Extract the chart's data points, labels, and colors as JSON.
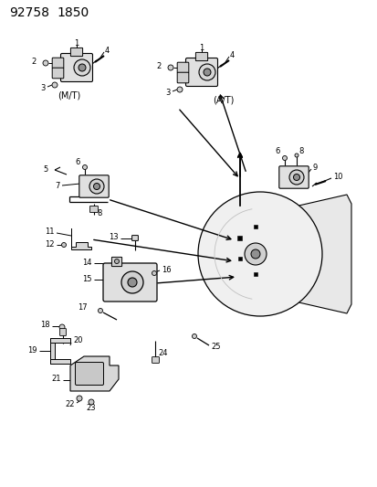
{
  "title": "92758  1850",
  "bg_color": "#ffffff",
  "fig_width": 4.14,
  "fig_height": 5.33,
  "dpi": 100,
  "mt_label": "(M/T)",
  "at_label": "(A/T)"
}
